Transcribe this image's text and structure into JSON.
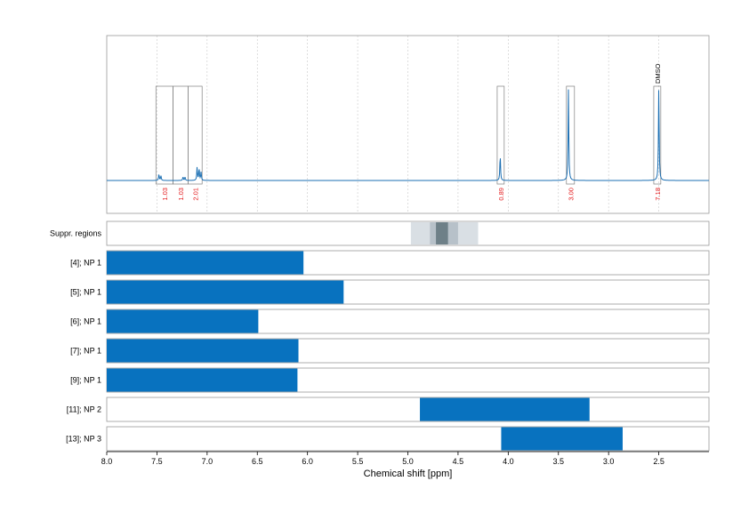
{
  "chart_data": {
    "type": "spectrum",
    "xlabel": "Chemical shift [ppm]",
    "xlim": [
      8.0,
      2.0
    ],
    "x_ticks": [
      "8.0",
      "7.5",
      "7.0",
      "6.5",
      "6.0",
      "5.5",
      "5.0",
      "4.5",
      "4.0",
      "3.5",
      "3.0",
      "2.5"
    ],
    "grid": true,
    "colors": {
      "spectrum": "#1b6fb3",
      "bar": "#0872bf",
      "integral": "#e31a1c",
      "frame": "#9a9a9a"
    },
    "spectrum_peaks": [
      {
        "ppm": 7.48,
        "height": 0.07
      },
      {
        "ppm": 7.46,
        "height": 0.05
      },
      {
        "ppm": 7.24,
        "height": 0.04
      },
      {
        "ppm": 7.22,
        "height": 0.035
      },
      {
        "ppm": 7.1,
        "height": 0.14
      },
      {
        "ppm": 7.08,
        "height": 0.13
      },
      {
        "ppm": 7.06,
        "height": 0.09
      },
      {
        "ppm": 4.08,
        "height": 0.28
      },
      {
        "ppm": 3.4,
        "height": 0.98
      },
      {
        "ppm": 2.5,
        "height": 1.0
      }
    ],
    "integration_regions": [
      {
        "from": 7.51,
        "to": 7.34,
        "label": "1.03"
      },
      {
        "from": 7.34,
        "to": 7.19,
        "label": "1.03"
      },
      {
        "from": 7.19,
        "to": 7.05,
        "label": "2.01"
      },
      {
        "from": 4.11,
        "to": 4.04,
        "label": "0.89"
      },
      {
        "from": 3.42,
        "to": 3.34,
        "label": "3.00"
      },
      {
        "from": 2.55,
        "to": 2.48,
        "label": "7.18",
        "annotation": "DMSO"
      }
    ],
    "suppressed_regions": {
      "label": "Suppr. regions",
      "bands": [
        {
          "from": 4.97,
          "to": 4.3,
          "shade": "light"
        },
        {
          "from": 4.78,
          "to": 4.5,
          "shade": "medium"
        },
        {
          "from": 4.72,
          "to": 4.6,
          "shade": "dark"
        }
      ]
    },
    "rows": [
      {
        "label": "[4]; NP 1",
        "from": 8.0,
        "to": 6.04
      },
      {
        "label": "[5]; NP 1",
        "from": 8.0,
        "to": 5.64
      },
      {
        "label": "[6]; NP 1",
        "from": 8.0,
        "to": 6.49
      },
      {
        "label": "[7]; NP 1",
        "from": 8.0,
        "to": 6.09
      },
      {
        "label": "[9]; NP 1",
        "from": 8.0,
        "to": 6.1
      },
      {
        "label": "[11]; NP 2",
        "from": 4.88,
        "to": 3.19
      },
      {
        "label": "[13]; NP 3",
        "from": 4.07,
        "to": 2.86
      }
    ]
  }
}
